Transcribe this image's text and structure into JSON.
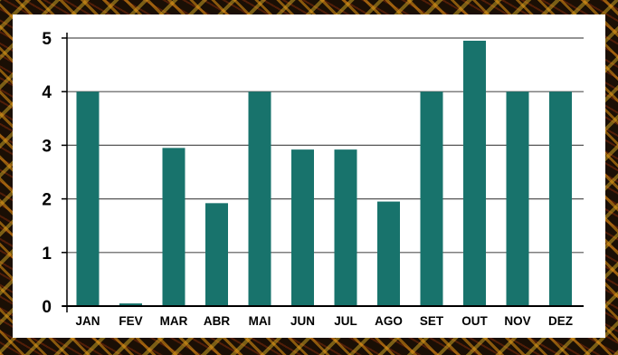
{
  "chart_data": {
    "type": "bar",
    "categories": [
      "JAN",
      "FEV",
      "MAR",
      "ABR",
      "MAI",
      "JUN",
      "JUL",
      "AGO",
      "SET",
      "OUT",
      "NOV",
      "DEZ"
    ],
    "values": [
      4,
      0.05,
      2.95,
      1.92,
      4,
      2.92,
      2.92,
      1.95,
      4,
      4.95,
      4,
      4
    ],
    "title": "",
    "xlabel": "",
    "ylabel": "",
    "ylim": [
      0,
      5
    ],
    "yticks": [
      "0",
      "1",
      "2",
      "3",
      "4",
      "5"
    ],
    "grid": true,
    "bar_color": "#18736c"
  }
}
